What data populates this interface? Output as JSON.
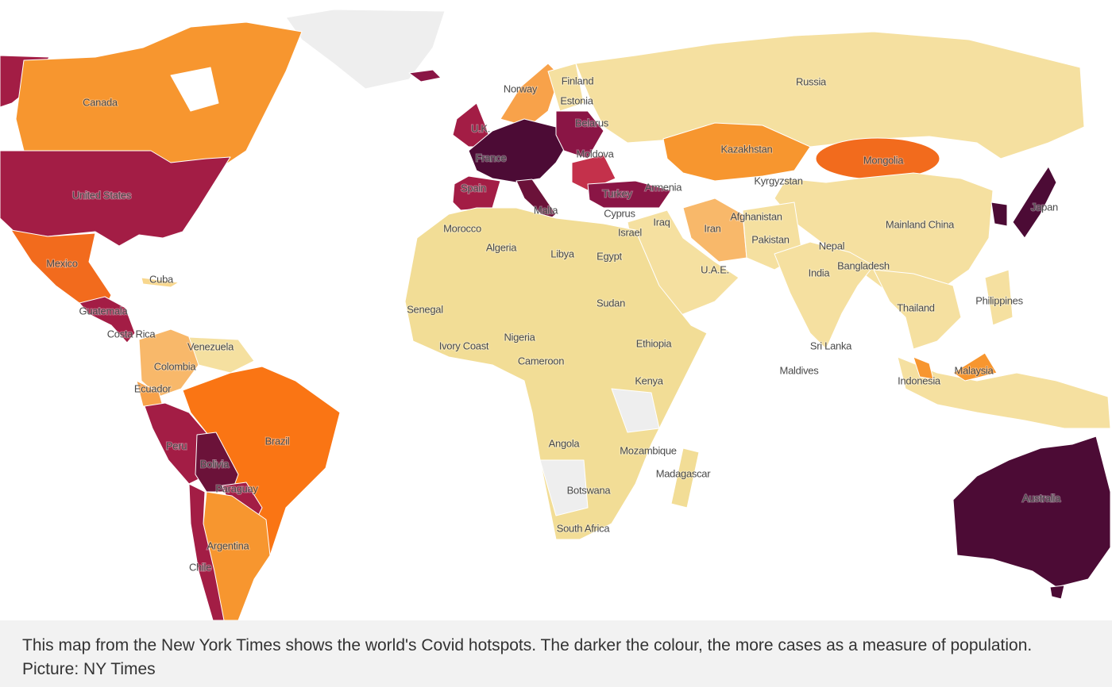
{
  "labels": [
    "Canada",
    "United States",
    "Mexico",
    "Cuba",
    "Guatemala",
    "Costa Rica",
    "Venezuela",
    "Colombia",
    "Ecuador",
    "Peru",
    "Bolivia",
    "Paraguay",
    "Brazil",
    "Argentina",
    "Chile",
    "Norway",
    "Finland",
    "Estonia",
    "Belarus",
    "U.K.",
    "France",
    "Moldova",
    "Spain",
    "Malta",
    "Turkey",
    "Armenia",
    "Cyprus",
    "Israel",
    "Morocco",
    "Algeria",
    "Libya",
    "Egypt",
    "Iraq",
    "Iran",
    "Afghanistan",
    "Pakistan",
    "Kazakhstan",
    "Kyrgyzstan",
    "Mongolia",
    "Russia",
    "Mainland China",
    "Japan",
    "Nepal",
    "India",
    "Bangladesh",
    "U.A.E.",
    "Thailand",
    "Philippines",
    "Sri Lanka",
    "Maldives",
    "Malaysia",
    "Indonesia",
    "Senegal",
    "Ivory Coast",
    "Nigeria",
    "Cameroon",
    "Sudan",
    "Ethiopia",
    "Kenya",
    "Angola",
    "Mozambique",
    "Madagascar",
    "Botswana",
    "South Africa",
    "Australia"
  ],
  "caption": "This map from the New York Times shows the world's Covid hotspots. The darker the colour, the more cases as a measure of population. Picture: NY Times"
}
